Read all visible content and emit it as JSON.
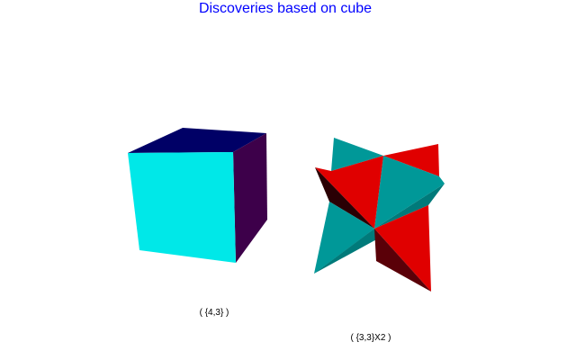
{
  "figure": {
    "title": "Discoveries based on cube",
    "title_color": "#0000ff",
    "background": "#ffffff"
  },
  "shapes": [
    {
      "name": "cube",
      "label": "( {4,3} )",
      "face_colors": {
        "front": "#00e8e8",
        "top": "#000066",
        "side": "#3d004a"
      }
    },
    {
      "name": "stella-octangula",
      "label": "( {3,3}X2 )",
      "face_colors": {
        "teal": "#009898",
        "teal_dark": "#007a7a",
        "red": "#e00000",
        "red_dark": "#5a0008",
        "shadow": "#2a0004"
      }
    }
  ]
}
